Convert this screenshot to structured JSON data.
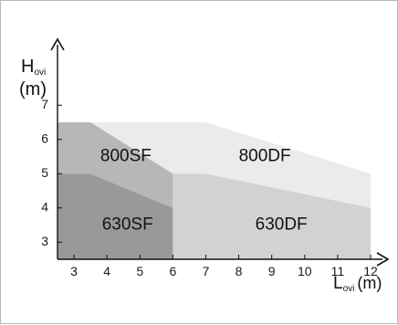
{
  "chart_data": {
    "type": "area",
    "title": "",
    "xlabel": {
      "main": "L",
      "sub": "ovi",
      "unit": "(m)"
    },
    "ylabel": {
      "main": "H",
      "sub": "ovi",
      "unit": "(m)"
    },
    "xlim": [
      2.5,
      12.5
    ],
    "ylim": [
      2.5,
      7.3
    ],
    "x_ticks": [
      3,
      4,
      5,
      6,
      7,
      8,
      9,
      10,
      11,
      12
    ],
    "y_ticks": [
      3,
      4,
      5,
      6,
      7
    ],
    "grid": false,
    "regions": [
      {
        "name": "800DF",
        "color": "#ebebeb",
        "polygon": [
          [
            3.5,
            6.5
          ],
          [
            7,
            6.5
          ],
          [
            12,
            5
          ],
          [
            12,
            4
          ],
          [
            7,
            5
          ],
          [
            6,
            5
          ],
          [
            3.5,
            6.5
          ]
        ],
        "label_pos": [
          8.0,
          5.5
        ]
      },
      {
        "name": "630DF",
        "color": "#d2d2d2",
        "polygon": [
          [
            6,
            2.5
          ],
          [
            12,
            2.5
          ],
          [
            12,
            4
          ],
          [
            7,
            5
          ],
          [
            6,
            5
          ]
        ],
        "label_pos": [
          8.5,
          3.5
        ]
      },
      {
        "name": "800SF",
        "color": "#b7b7b7",
        "polygon": [
          [
            2.5,
            6.5
          ],
          [
            3.5,
            6.5
          ],
          [
            6,
            5
          ],
          [
            6,
            4
          ],
          [
            3.5,
            5
          ],
          [
            2.5,
            5
          ]
        ],
        "label_pos": [
          3.8,
          5.5
        ]
      },
      {
        "name": "630SF",
        "color": "#999999",
        "polygon": [
          [
            2.5,
            2.5
          ],
          [
            6,
            2.5
          ],
          [
            6,
            4
          ],
          [
            3.5,
            5
          ],
          [
            2.5,
            5
          ]
        ],
        "label_pos": [
          3.85,
          3.5
        ]
      }
    ]
  }
}
